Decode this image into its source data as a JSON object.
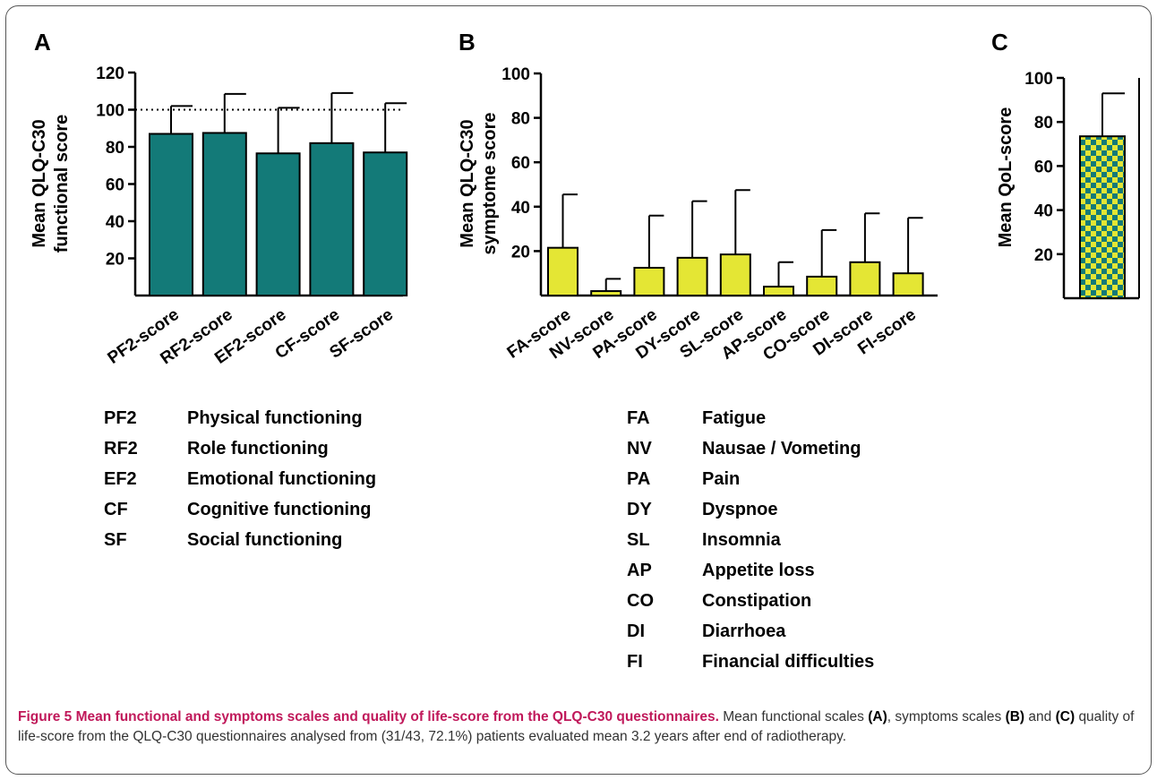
{
  "figure": {
    "caption_label": "Figure 5",
    "caption_title": "Mean functional and symptoms scales and quality of life-score from the QLQ-C30 questionnaires.",
    "caption_text_1": "Mean functional scales",
    "caption_ref_a": "(A)",
    "caption_text_2": ", symptoms scales",
    "caption_ref_b": "(B)",
    "caption_text_3": "and",
    "caption_ref_c": "(C)",
    "caption_text_4": "quality of life-score from the QLQ-C30 questionnaires analysed from (31/43, 72.1%) patients evaluated mean 3.2 years after end of radiotherapy."
  },
  "chart_data": [
    {
      "panel": "A",
      "type": "bar",
      "ylabel": [
        "Mean QLQ-C30",
        "functional score"
      ],
      "ylim": [
        0,
        120
      ],
      "yticks": [
        "20",
        "40",
        "60",
        "80",
        "100",
        "120"
      ],
      "categories": [
        "PF2-score",
        "RF2-score",
        "EF2-score",
        "CF-score",
        "SF-score"
      ],
      "values": [
        87,
        87.5,
        76.5,
        82,
        77
      ],
      "error_upper": [
        102,
        108.5,
        101,
        109,
        103.5
      ],
      "reference_line": 100,
      "bar_color": "#137a78",
      "legend": [
        {
          "abbr": "PF2",
          "name": "Physical functioning"
        },
        {
          "abbr": "RF2",
          "name": "Role functioning"
        },
        {
          "abbr": "EF2",
          "name": "Emotional functioning"
        },
        {
          "abbr": "CF",
          "name": "Cognitive functioning"
        },
        {
          "abbr": "SF",
          "name": "Social functioning"
        }
      ]
    },
    {
      "panel": "B",
      "type": "bar",
      "ylabel": [
        "Mean QLQ-C30",
        "symptome score"
      ],
      "ylim": [
        0,
        100
      ],
      "yticks": [
        "20",
        "40",
        "60",
        "80",
        "100"
      ],
      "categories": [
        "FA-score",
        "NV-score",
        "PA-score",
        "DY-score",
        "SL-score",
        "AP-score",
        "CO-score",
        "DI-score",
        "FI-score"
      ],
      "values": [
        21.5,
        2,
        12.5,
        17,
        18.5,
        4,
        8.5,
        15,
        10
      ],
      "error_upper": [
        45.5,
        7.5,
        36,
        42.5,
        47.5,
        15,
        29.5,
        37,
        35
      ],
      "bar_color": "#e4e634",
      "legend": [
        {
          "abbr": "FA",
          "name": "Fatigue"
        },
        {
          "abbr": "NV",
          "name": "Nausae / Vometing"
        },
        {
          "abbr": "PA",
          "name": "Pain"
        },
        {
          "abbr": "DY",
          "name": "Dyspnoe"
        },
        {
          "abbr": "SL",
          "name": "Insomnia"
        },
        {
          "abbr": "AP",
          "name": "Appetite loss"
        },
        {
          "abbr": "CO",
          "name": "Constipation"
        },
        {
          "abbr": "DI",
          "name": "Diarrhoea"
        },
        {
          "abbr": "FI",
          "name": "Financial difficulties"
        }
      ]
    },
    {
      "panel": "C",
      "type": "bar",
      "ylabel": [
        "Mean QoL-score"
      ],
      "ylim": [
        0,
        100
      ],
      "yticks": [
        "20",
        "40",
        "60",
        "80",
        "100"
      ],
      "categories": [
        ""
      ],
      "values": [
        73.5
      ],
      "error_upper": [
        93
      ],
      "bar_colors": [
        "#e4e634",
        "#137a78"
      ]
    }
  ]
}
